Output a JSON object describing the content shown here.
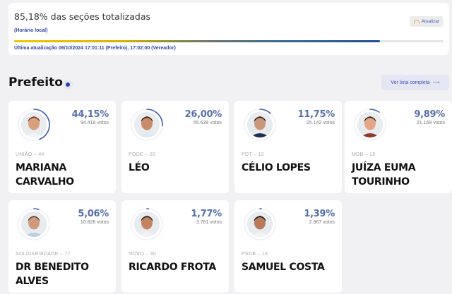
{
  "status": {
    "title": "85,18% das seções totalizadas",
    "local_time": "(Horário local)",
    "progress_pct": 85.18,
    "last_update": "Última atualização 06/10/2024 17:01:11 (Prefeito), 17:02:00 (Vereador)",
    "refresh_label": "Atualizar"
  },
  "section": {
    "title": "Prefeito",
    "see_all_label": "Ver lista completa",
    "see_all_arrow": "⟶"
  },
  "colors": {
    "accent": "#2d47a6",
    "percent": "#5670ad",
    "ring": "#3f5fb0"
  },
  "candidates": [
    {
      "party": "UNIÃO – 44",
      "name": "MARIANA CARVALHO",
      "pct": "44,15%",
      "votes": "94.418 votos",
      "share": 44.15,
      "skin": "#d9a07e",
      "hair": "#7a3a1e",
      "shirt": "#f4f4f4"
    },
    {
      "party": "PODE – 20",
      "name": "LÉO",
      "pct": "26,00%",
      "votes": "55.639 votos",
      "share": 26.0,
      "skin": "#c88a68",
      "hair": "#3a2a20",
      "shirt": "#dfeaf0"
    },
    {
      "party": "PDT – 12",
      "name": "CÉLIO LOPES",
      "pct": "11,75%",
      "votes": "25.142 votos",
      "share": 11.75,
      "skin": "#c9977a",
      "hair": "#2a2320",
      "shirt": "#1e2e55"
    },
    {
      "party": "MDB – 15",
      "name": "JUÍZA EUMA TOURINHO",
      "pct": "9,89%",
      "votes": "21.169 votos",
      "share": 9.89,
      "skin": "#e0a888",
      "hair": "#4a1e14",
      "shirt": "#8a3b2a"
    },
    {
      "party": "SOLIDARIEDADE – 77",
      "name": "DR BENEDITO ALVES",
      "pct": "5,06%",
      "votes": "10.826 votos",
      "share": 5.06,
      "skin": "#cf9a7c",
      "hair": "#5a4a40",
      "shirt": "#b9cde6"
    },
    {
      "party": "NOVO – 30",
      "name": "RICARDO FROTA",
      "pct": "1,77%",
      "votes": "3.781 votos",
      "share": 1.77,
      "skin": "#c48462",
      "hair": "#22201e",
      "shirt": "#f2f2f2"
    },
    {
      "party": "PSDB – 18",
      "name": "SAMUEL COSTA",
      "pct": "1,39%",
      "votes": "2.967 votos",
      "share": 1.39,
      "skin": "#b87a5c",
      "hair": "#1e1a18",
      "shirt": "#f4f4f4"
    }
  ]
}
